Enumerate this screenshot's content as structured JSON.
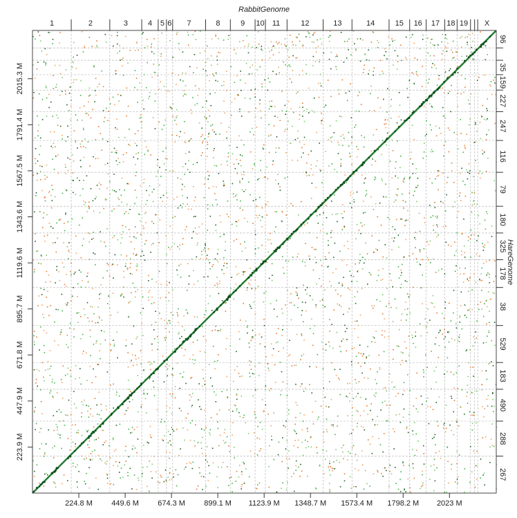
{
  "chart_data": {
    "type": "scatter",
    "title": "RabbitGenome",
    "xlabel": "",
    "ylabel": "HareGenome",
    "x_unit": "M",
    "xlim": [
      0,
      2250
    ],
    "ylim": [
      0,
      2250
    ],
    "x_ticks": [
      224.8,
      449.6,
      674.3,
      899.1,
      1123.9,
      1348.7,
      1573.4,
      1798.2,
      2023
    ],
    "x_tick_labels": [
      "224.8 M",
      "449.6 M",
      "674.3 M",
      "899.1 M",
      "1123.9 M",
      "1348.7 M",
      "1573.4 M",
      "1798.2 M",
      "2023 M"
    ],
    "y_ticks": [
      223.9,
      447.9,
      671.8,
      895.7,
      1119.6,
      1343.6,
      1567.5,
      1791.4,
      2015.3
    ],
    "y_tick_labels": [
      "223.9 M",
      "447.9 M",
      "671.8 M",
      "895.7 M",
      "1119.6 M",
      "1343.6 M",
      "1567.5 M",
      "1791.4 M",
      "2015.3 M"
    ],
    "x_chromosomes": [
      {
        "label": "1",
        "start": 0,
        "end": 188
      },
      {
        "label": "2",
        "start": 188,
        "end": 375
      },
      {
        "label": "3",
        "start": 375,
        "end": 530
      },
      {
        "label": "4",
        "start": 530,
        "end": 610
      },
      {
        "label": "5",
        "start": 610,
        "end": 650
      },
      {
        "label": "6",
        "start": 650,
        "end": 680
      },
      {
        "label": "7",
        "start": 680,
        "end": 840
      },
      {
        "label": "8",
        "start": 840,
        "end": 960
      },
      {
        "label": "9",
        "start": 960,
        "end": 1080
      },
      {
        "label": "10",
        "start": 1080,
        "end": 1130
      },
      {
        "label": "11",
        "start": 1130,
        "end": 1235
      },
      {
        "label": "12",
        "start": 1235,
        "end": 1410
      },
      {
        "label": "13",
        "start": 1410,
        "end": 1550
      },
      {
        "label": "14",
        "start": 1550,
        "end": 1730
      },
      {
        "label": "15",
        "start": 1730,
        "end": 1830
      },
      {
        "label": "16",
        "start": 1830,
        "end": 1910
      },
      {
        "label": "17",
        "start": 1910,
        "end": 2000
      },
      {
        "label": "18",
        "start": 2000,
        "end": 2060
      },
      {
        "label": "19",
        "start": 2060,
        "end": 2125
      },
      {
        "label": "",
        "start": 2125,
        "end": 2145
      },
      {
        "label": "",
        "start": 2145,
        "end": 2160
      },
      {
        "label": "X",
        "start": 2160,
        "end": 2250
      }
    ],
    "y_contigs": [
      {
        "label": "267",
        "start": 0,
        "end": 180
      },
      {
        "label": "288",
        "start": 180,
        "end": 350
      },
      {
        "label": "490",
        "start": 350,
        "end": 505
      },
      {
        "label": "183",
        "start": 505,
        "end": 635
      },
      {
        "label": "529",
        "start": 635,
        "end": 815
      },
      {
        "label": "38",
        "start": 815,
        "end": 1000
      },
      {
        "label": "178",
        "start": 1000,
        "end": 1135
      },
      {
        "label": "325",
        "start": 1135,
        "end": 1265
      },
      {
        "label": "180",
        "start": 1265,
        "end": 1395
      },
      {
        "label": "79",
        "start": 1395,
        "end": 1560
      },
      {
        "label": "116",
        "start": 1560,
        "end": 1715
      },
      {
        "label": "247",
        "start": 1715,
        "end": 1855
      },
      {
        "label": "227",
        "start": 1855,
        "end": 1960
      },
      {
        "label": "159",
        "start": 1960,
        "end": 2035
      },
      {
        "label": "35",
        "start": 2035,
        "end": 2105
      },
      {
        "label": "",
        "start": 2105,
        "end": 2165
      },
      {
        "label": "96",
        "start": 2165,
        "end": 2250
      }
    ],
    "diagonal": {
      "x": [
        0,
        2250
      ],
      "y": [
        0,
        2250
      ],
      "color": "#1f7a2e"
    },
    "noise": {
      "count": 3600,
      "colors": [
        "#3cb043",
        "#e07b2c",
        "#1a5e20",
        "#7bc96f",
        "#f0a060"
      ]
    },
    "grid": true,
    "legend": "none"
  }
}
